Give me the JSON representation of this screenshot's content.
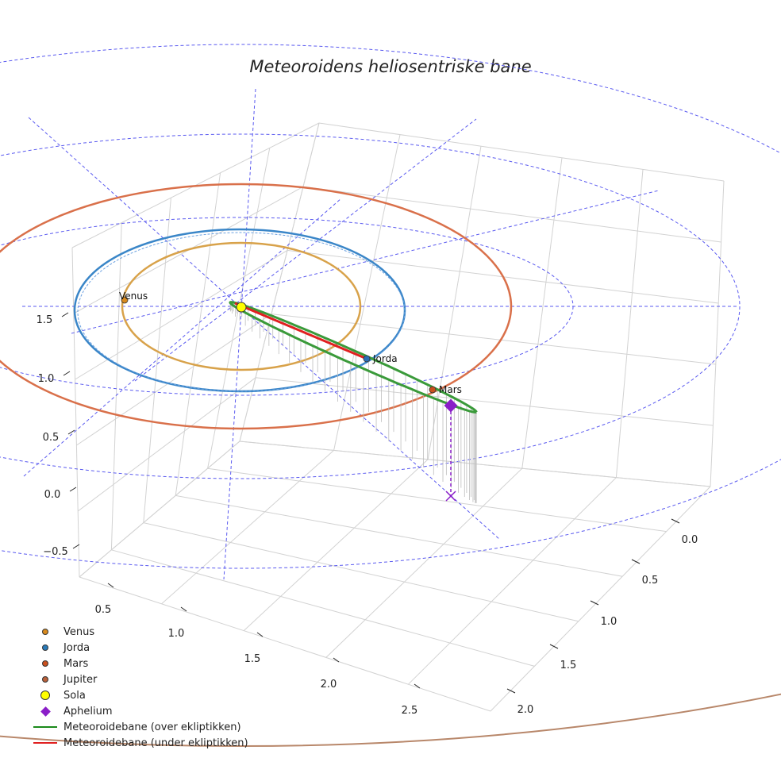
{
  "chart_data": {
    "type": "3d-orbit",
    "title": "Meteoroidens heliosentriske bane",
    "x_ticks": [
      "0.5",
      "1.0",
      "1.5",
      "2.0",
      "2.5"
    ],
    "y_ticks": [
      "0.0",
      "0.5",
      "1.0",
      "1.5",
      "2.0"
    ],
    "z_ticks": [
      "1.5",
      "1.0",
      "0.5",
      "0.0",
      "−0.5"
    ],
    "planet_orbits": [
      {
        "name": "Venus",
        "radius_au": 0.72,
        "color": "#d8a24a"
      },
      {
        "name": "Jorda",
        "radius_au": 1.0,
        "color": "#3a86c8"
      },
      {
        "name": "Mars",
        "radius_au": 1.52,
        "color": "#d9704a"
      },
      {
        "name": "Jupiter",
        "radius_au": 5.2,
        "color": "#b8876a"
      }
    ],
    "reference_circles_au": [
      2,
      3,
      4
    ],
    "points": [
      {
        "label": "Venus",
        "color": "#d88a1e"
      },
      {
        "label": "Jorda",
        "color": "#2a6fb5"
      },
      {
        "label": "Mars",
        "color": "#c9501e"
      }
    ],
    "meteoroid_orbit": {
      "above_color": "#3a9a3a",
      "below_color": "#e02020",
      "aphelion_color": "#8a1ec8"
    },
    "legend_position": "bottom-left",
    "legend": [
      {
        "label": "Venus",
        "kind": "dot",
        "color": "#d88a1e"
      },
      {
        "label": "Jorda",
        "kind": "dot",
        "color": "#2a7ab8"
      },
      {
        "label": "Mars",
        "kind": "dot",
        "color": "#c9501e"
      },
      {
        "label": "Jupiter",
        "kind": "dot",
        "color": "#b8603a"
      },
      {
        "label": "Sola",
        "kind": "big-dot",
        "color": "#ffff00"
      },
      {
        "label": "Aphelium",
        "kind": "diamond",
        "color": "#8a1ec8"
      },
      {
        "label": "Meteoroidebane (over ekliptikken)",
        "kind": "line",
        "color": "#1a8a1a"
      },
      {
        "label": "Meteoroidebane (under ekliptikken)",
        "kind": "line",
        "color": "#e02020"
      }
    ]
  }
}
